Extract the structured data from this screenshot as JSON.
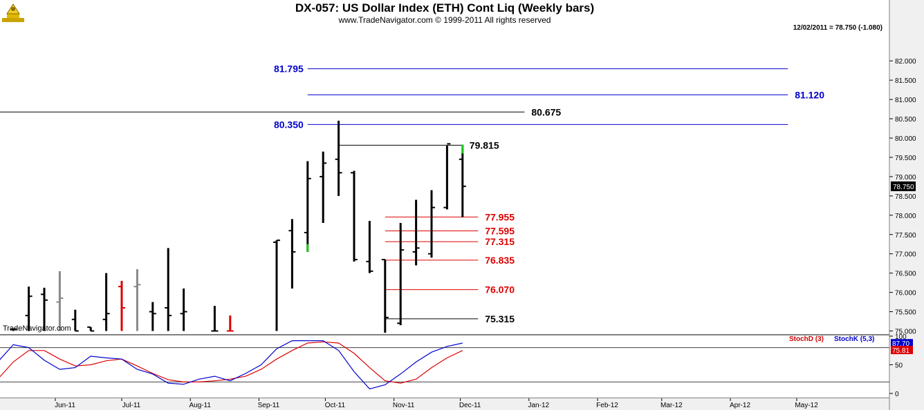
{
  "header": {
    "title": "DX-057:  US Dollar Index (ETH) Cont Liq  (Weekly bars)",
    "copyright": "www.TradeNavigator.com © 1999-2011 All rights reserved",
    "last_info": "12/02/2011 = 78.750 (-1.080)",
    "watermark": "TradeNavigator.com"
  },
  "chart_data": [
    {
      "type": "ohlc",
      "title": "DX-057:  US Dollar Index (ETH) Cont Liq  (Weekly bars)",
      "frequency": "weekly",
      "ylim": [
        75.0,
        82.2
      ],
      "y_ticks": [
        "75.000",
        "75.500",
        "76.000",
        "76.500",
        "77.000",
        "77.500",
        "78.000",
        "78.500",
        "79.000",
        "79.500",
        "80.000",
        "80.500",
        "81.000",
        "81.500",
        "82.000"
      ],
      "x_tick_labels": [
        "Jun-11",
        "Jul-11",
        "Aug-11",
        "Sep-11",
        "Oct-11",
        "Nov-11",
        "Dec-11",
        "Jan-12",
        "Feb-12",
        "Mar-12",
        "Apr-12",
        "May-12"
      ],
      "last_price_label": "78.750",
      "bars": [
        {
          "date": "2011-05-13",
          "open": 75.05,
          "high": 75.05,
          "low": 75.0,
          "close": 75.05,
          "color": "#000000"
        },
        {
          "date": "2011-05-20",
          "open": 75.4,
          "high": 76.15,
          "low": 75.0,
          "close": 75.9,
          "color": "#000000"
        },
        {
          "date": "2011-05-27",
          "open": 75.95,
          "high": 76.12,
          "low": 75.0,
          "close": 75.8,
          "color": "#000000"
        },
        {
          "date": "2011-06-03",
          "open": 75.75,
          "high": 76.55,
          "low": 75.0,
          "close": 75.85,
          "color": "#888888"
        },
        {
          "date": "2011-06-10",
          "open": 75.3,
          "high": 75.55,
          "low": 75.0,
          "close": 75.0,
          "color": "#000000"
        },
        {
          "date": "2011-06-17",
          "open": 75.1,
          "high": 75.1,
          "low": 75.0,
          "close": 75.0,
          "color": "#000000"
        },
        {
          "date": "2011-06-24",
          "open": 75.3,
          "high": 76.5,
          "low": 75.0,
          "close": 75.45,
          "color": "#000000"
        },
        {
          "date": "2011-07-01",
          "open": 76.15,
          "high": 76.3,
          "low": 75.0,
          "close": 75.6,
          "color": "#dd0000"
        },
        {
          "date": "2011-07-08",
          "open": 76.15,
          "high": 76.6,
          "low": 75.0,
          "close": 76.2,
          "color": "#888888"
        },
        {
          "date": "2011-07-15",
          "open": 75.5,
          "high": 75.75,
          "low": 75.0,
          "close": 75.45,
          "color": "#000000"
        },
        {
          "date": "2011-07-22",
          "open": 75.6,
          "high": 77.15,
          "low": 75.0,
          "close": 75.4,
          "color": "#000000"
        },
        {
          "date": "2011-07-29",
          "open": 75.45,
          "high": 76.1,
          "low": 75.0,
          "close": 75.5,
          "color": "#000000"
        },
        {
          "date": "2011-08-12",
          "open": 75.0,
          "high": 75.65,
          "low": 75.0,
          "close": 75.0,
          "color": "#000000"
        },
        {
          "date": "2011-08-19",
          "open": 75.0,
          "high": 75.4,
          "low": 75.0,
          "close": 75.0,
          "color": "#dd0000"
        },
        {
          "date": "2011-09-09",
          "open": 77.3,
          "high": 77.35,
          "low": 75.0,
          "close": 77.35,
          "color": "#000000"
        },
        {
          "date": "2011-09-16",
          "open": 77.6,
          "high": 77.9,
          "low": 76.1,
          "close": 77.05,
          "color": "#000000"
        },
        {
          "date": "2011-09-23",
          "open": 77.55,
          "high": 79.4,
          "low": 77.05,
          "close": 78.95,
          "color": "#000000"
        },
        {
          "date": "2011-09-30",
          "open": 79.0,
          "high": 79.65,
          "low": 77.8,
          "close": 79.35,
          "color": "#000000"
        },
        {
          "date": "2011-10-07",
          "open": 79.45,
          "high": 80.45,
          "low": 78.5,
          "close": 79.1,
          "color": "#000000"
        },
        {
          "date": "2011-10-14",
          "open": 79.1,
          "high": 79.15,
          "low": 76.8,
          "close": 76.85,
          "color": "#000000"
        },
        {
          "date": "2011-10-21",
          "open": 76.8,
          "high": 77.85,
          "low": 76.5,
          "close": 76.55,
          "color": "#000000"
        },
        {
          "date": "2011-10-28",
          "open": 76.85,
          "high": 76.85,
          "low": 74.95,
          "close": 75.35,
          "color": "#000000"
        },
        {
          "date": "2011-11-04",
          "open": 75.2,
          "high": 77.8,
          "low": 75.15,
          "close": 77.1,
          "color": "#000000"
        },
        {
          "date": "2011-11-11",
          "open": 77.05,
          "high": 78.4,
          "low": 76.7,
          "close": 77.15,
          "color": "#000000"
        },
        {
          "date": "2011-11-18",
          "open": 77.0,
          "high": 78.65,
          "low": 76.9,
          "close": 78.2,
          "color": "#000000"
        },
        {
          "date": "2011-11-25",
          "open": 78.2,
          "high": 79.8,
          "low": 78.15,
          "close": 79.85,
          "color": "#000000"
        },
        {
          "date": "2011-12-02",
          "open": 79.45,
          "high": 79.83,
          "low": 77.95,
          "close": 78.75,
          "color": "#000000"
        }
      ],
      "highlights": [
        {
          "date": "2011-09-23",
          "from": 77.05,
          "to": 77.25,
          "color": "#22cc22"
        },
        {
          "date": "2011-12-02",
          "from": 79.6,
          "to": 79.83,
          "color": "#22cc22"
        }
      ],
      "levels": [
        {
          "label": "81.795",
          "value": 81.795,
          "color": "#0000cc",
          "from": "2011-09-23",
          "to": "2012-04-27",
          "label_at": "left"
        },
        {
          "label": "81.120",
          "value": 81.12,
          "color": "#0000cc",
          "from": "2011-09-23",
          "to": "2012-04-27",
          "label_at": "right"
        },
        {
          "label": "80.675",
          "value": 80.675,
          "color": "#000000",
          "from": "2011-05-06",
          "to": "2011-12-30",
          "label_at": "right"
        },
        {
          "label": "80.350",
          "value": 80.35,
          "color": "#0000cc",
          "from": "2011-09-23",
          "to": "2012-04-27",
          "label_at": "left"
        },
        {
          "label": "79.815",
          "value": 79.815,
          "color": "#000000",
          "from": "2011-10-07",
          "to": "2011-12-02",
          "label_at": "right"
        },
        {
          "label": "77.955",
          "value": 77.955,
          "color": "#dd0000",
          "from": "2011-10-28",
          "to": "2011-12-09",
          "label_at": "right"
        },
        {
          "label": "77.595",
          "value": 77.595,
          "color": "#dd0000",
          "from": "2011-10-28",
          "to": "2011-12-09",
          "label_at": "right"
        },
        {
          "label": "77.315",
          "value": 77.315,
          "color": "#dd0000",
          "from": "2011-10-28",
          "to": "2011-12-09",
          "label_at": "right"
        },
        {
          "label": "76.835",
          "value": 76.835,
          "color": "#dd0000",
          "from": "2011-10-28",
          "to": "2011-12-09",
          "label_at": "right"
        },
        {
          "label": "76.070",
          "value": 76.07,
          "color": "#dd0000",
          "from": "2011-10-28",
          "to": "2011-12-09",
          "label_at": "right"
        },
        {
          "label": "75.315",
          "value": 75.315,
          "color": "#000000",
          "from": "2011-10-28",
          "to": "2011-12-09",
          "label_at": "right"
        }
      ]
    },
    {
      "type": "line",
      "ylim": [
        0,
        100
      ],
      "y_ticks": [
        "0",
        "50",
        "100"
      ],
      "reference_lines": [
        20,
        80
      ],
      "legend": [
        "StochD (3)",
        "StochK (5,3)"
      ],
      "last_values": {
        "stochK": "87.70",
        "stochD": "75.81"
      },
      "x": [
        "2011-05-06",
        "2011-05-13",
        "2011-05-20",
        "2011-05-27",
        "2011-06-03",
        "2011-06-10",
        "2011-06-17",
        "2011-06-24",
        "2011-07-01",
        "2011-07-08",
        "2011-07-15",
        "2011-07-22",
        "2011-07-29",
        "2011-08-05",
        "2011-08-12",
        "2011-08-19",
        "2011-08-26",
        "2011-09-02",
        "2011-09-09",
        "2011-09-16",
        "2011-09-23",
        "2011-09-30",
        "2011-10-07",
        "2011-10-14",
        "2011-10-21",
        "2011-10-28",
        "2011-11-04",
        "2011-11-11",
        "2011-11-18",
        "2011-11-25",
        "2011-12-02"
      ],
      "series": [
        {
          "name": "StochD (3)",
          "color": "#dd0000",
          "values": [
            25,
            55,
            75,
            75,
            60,
            48,
            50,
            57,
            60,
            48,
            35,
            24,
            20,
            20,
            22,
            25,
            30,
            42,
            60,
            75,
            88,
            90,
            88,
            70,
            45,
            22,
            18,
            25,
            45,
            62,
            75
          ]
        },
        {
          "name": "StochK (5,3)",
          "color": "#0000cc",
          "values": [
            55,
            85,
            80,
            58,
            42,
            45,
            65,
            62,
            60,
            42,
            34,
            18,
            16,
            25,
            30,
            22,
            35,
            50,
            78,
            92,
            92,
            92,
            75,
            38,
            8,
            15,
            34,
            55,
            72,
            82,
            88
          ]
        }
      ]
    }
  ]
}
